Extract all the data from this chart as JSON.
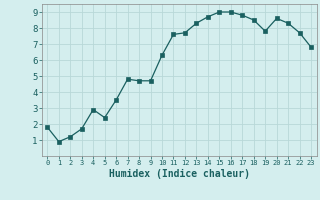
{
  "x": [
    0,
    1,
    2,
    3,
    4,
    5,
    6,
    7,
    8,
    9,
    10,
    11,
    12,
    13,
    14,
    15,
    16,
    17,
    18,
    19,
    20,
    21,
    22,
    23
  ],
  "y": [
    1.8,
    0.9,
    1.2,
    1.7,
    2.9,
    2.4,
    3.5,
    4.8,
    4.7,
    4.7,
    6.3,
    7.6,
    7.7,
    8.3,
    8.7,
    9.0,
    9.0,
    8.8,
    8.5,
    7.8,
    8.6,
    8.3,
    7.7,
    6.8
  ],
  "xlabel": "Humidex (Indice chaleur)",
  "line_color": "#1a6060",
  "marker_color": "#1a6060",
  "bg_color": "#d4eeee",
  "grid_color": "#b8d8d8",
  "xlim": [
    -0.5,
    23.5
  ],
  "ylim": [
    0,
    9.5
  ],
  "yticks": [
    1,
    2,
    3,
    4,
    5,
    6,
    7,
    8,
    9
  ],
  "xticks": [
    0,
    1,
    2,
    3,
    4,
    5,
    6,
    7,
    8,
    9,
    10,
    11,
    12,
    13,
    14,
    15,
    16,
    17,
    18,
    19,
    20,
    21,
    22,
    23
  ],
  "xlabel_fontsize": 7,
  "tick_fontsize": 6.5
}
